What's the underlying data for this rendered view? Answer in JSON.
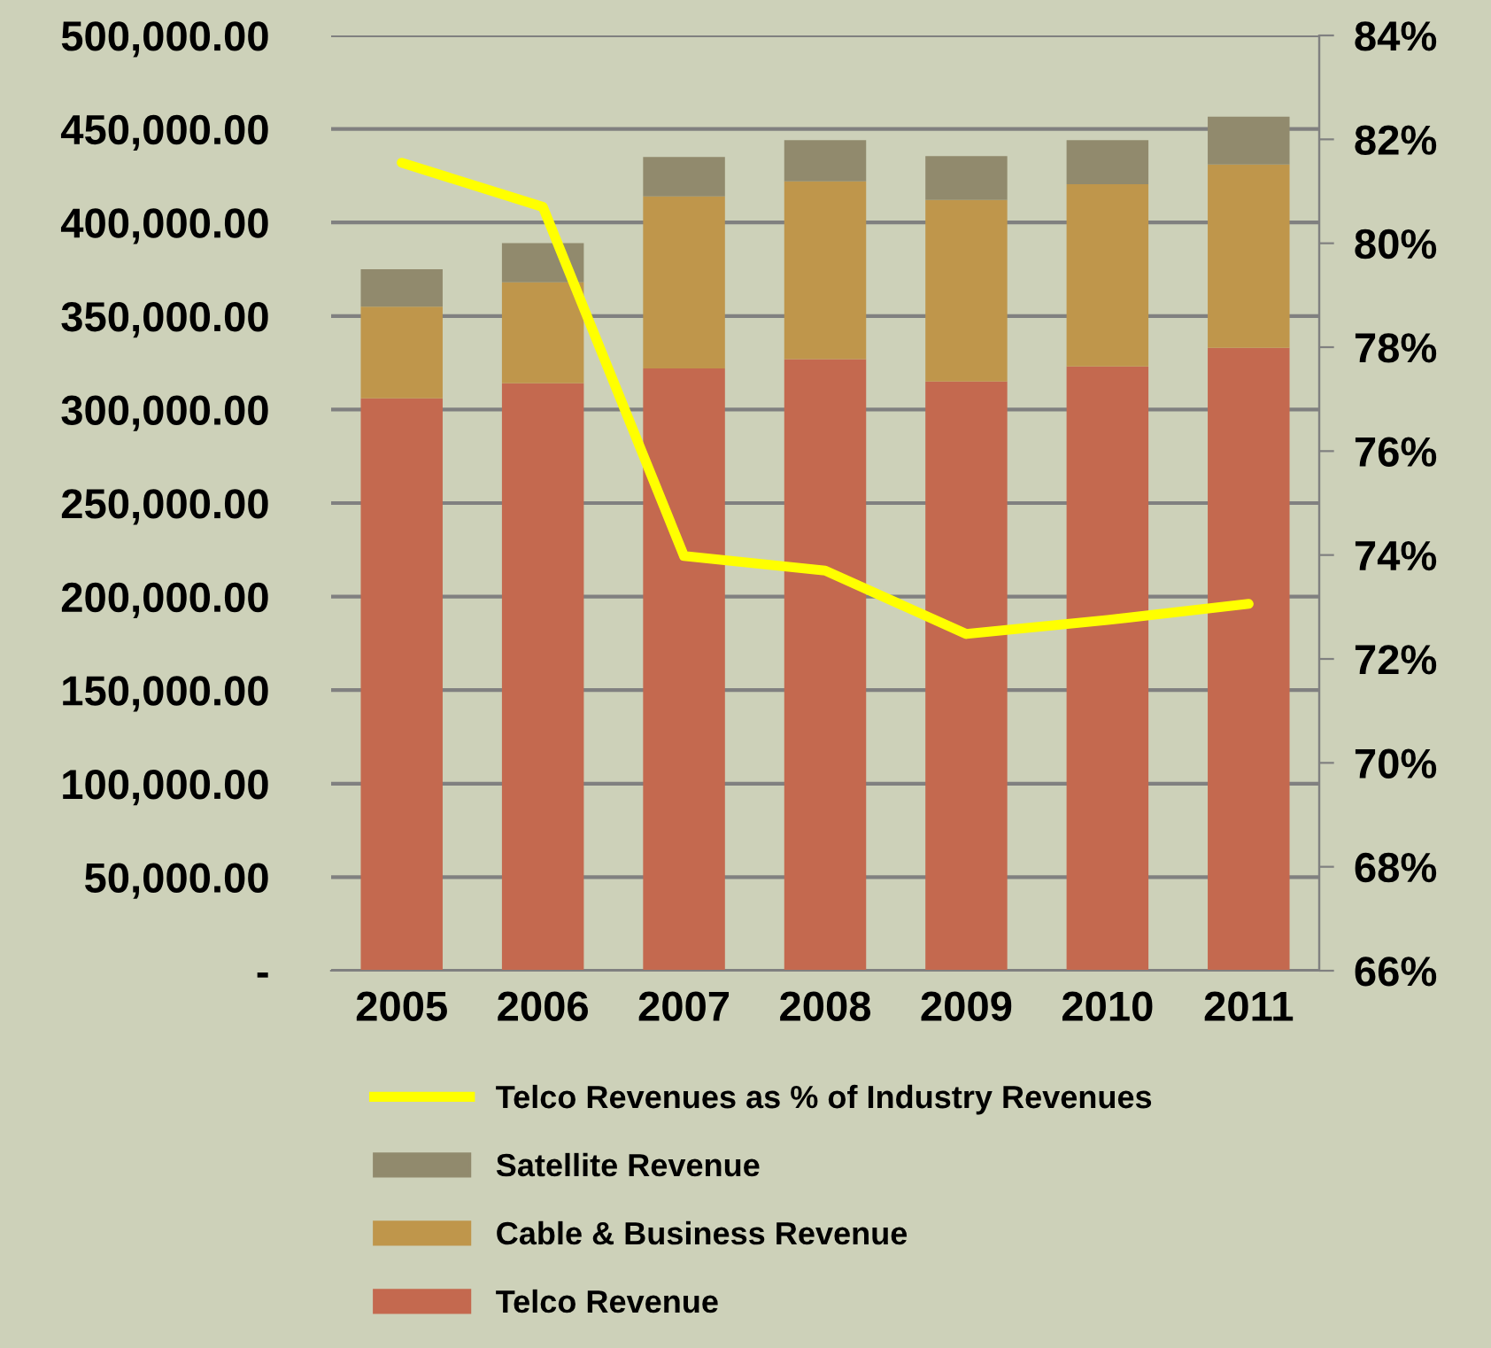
{
  "chart_data": {
    "type": "bar",
    "stacked": true,
    "categories": [
      "2005",
      "2006",
      "2007",
      "2008",
      "2009",
      "2010",
      "2011"
    ],
    "series": [
      {
        "name": "Telco Revenue",
        "color": "#c4694f",
        "values": [
          306000,
          314000,
          322000,
          327000,
          315000,
          323000,
          333000
        ]
      },
      {
        "name": "Cable & Business Revenue",
        "color": "#bf964b",
        "values": [
          49000,
          54000,
          92000,
          95000,
          97000,
          97500,
          98000
        ]
      },
      {
        "name": "Satellite Revenue",
        "color": "#918a6d",
        "values": [
          20000,
          21000,
          21000,
          22000,
          23500,
          23500,
          25500
        ]
      },
      {
        "name": "Telco Revenues as % of Industry Revenues",
        "type": "line",
        "axis": "y2",
        "color": "#ffff00",
        "values": [
          81.55,
          80.7,
          73.98,
          73.7,
          72.48,
          72.75,
          73.06
        ]
      }
    ],
    "ylim": [
      0,
      500000
    ],
    "yticks": [
      {
        "value": 0,
        "label": "-"
      },
      {
        "value": 50000,
        "label": "50,000.00"
      },
      {
        "value": 100000,
        "label": "100,000.00"
      },
      {
        "value": 150000,
        "label": "150,000.00"
      },
      {
        "value": 200000,
        "label": "200,000.00"
      },
      {
        "value": 250000,
        "label": "250,000.00"
      },
      {
        "value": 300000,
        "label": "300,000.00"
      },
      {
        "value": 350000,
        "label": "350,000.00"
      },
      {
        "value": 400000,
        "label": "400,000.00"
      },
      {
        "value": 450000,
        "label": "450,000.00"
      },
      {
        "value": 500000,
        "label": "500,000.00"
      }
    ],
    "y2lim": [
      66,
      84
    ],
    "y2ticks": [
      {
        "value": 66,
        "label": "66%"
      },
      {
        "value": 68,
        "label": "68%"
      },
      {
        "value": 70,
        "label": "70%"
      },
      {
        "value": 72,
        "label": "72%"
      },
      {
        "value": 74,
        "label": "74%"
      },
      {
        "value": 76,
        "label": "76%"
      },
      {
        "value": 78,
        "label": "78%"
      },
      {
        "value": 80,
        "label": "80%"
      },
      {
        "value": 82,
        "label": "82%"
      },
      {
        "value": 84,
        "label": "84%"
      }
    ],
    "grid": "y",
    "legend": "bottom"
  }
}
